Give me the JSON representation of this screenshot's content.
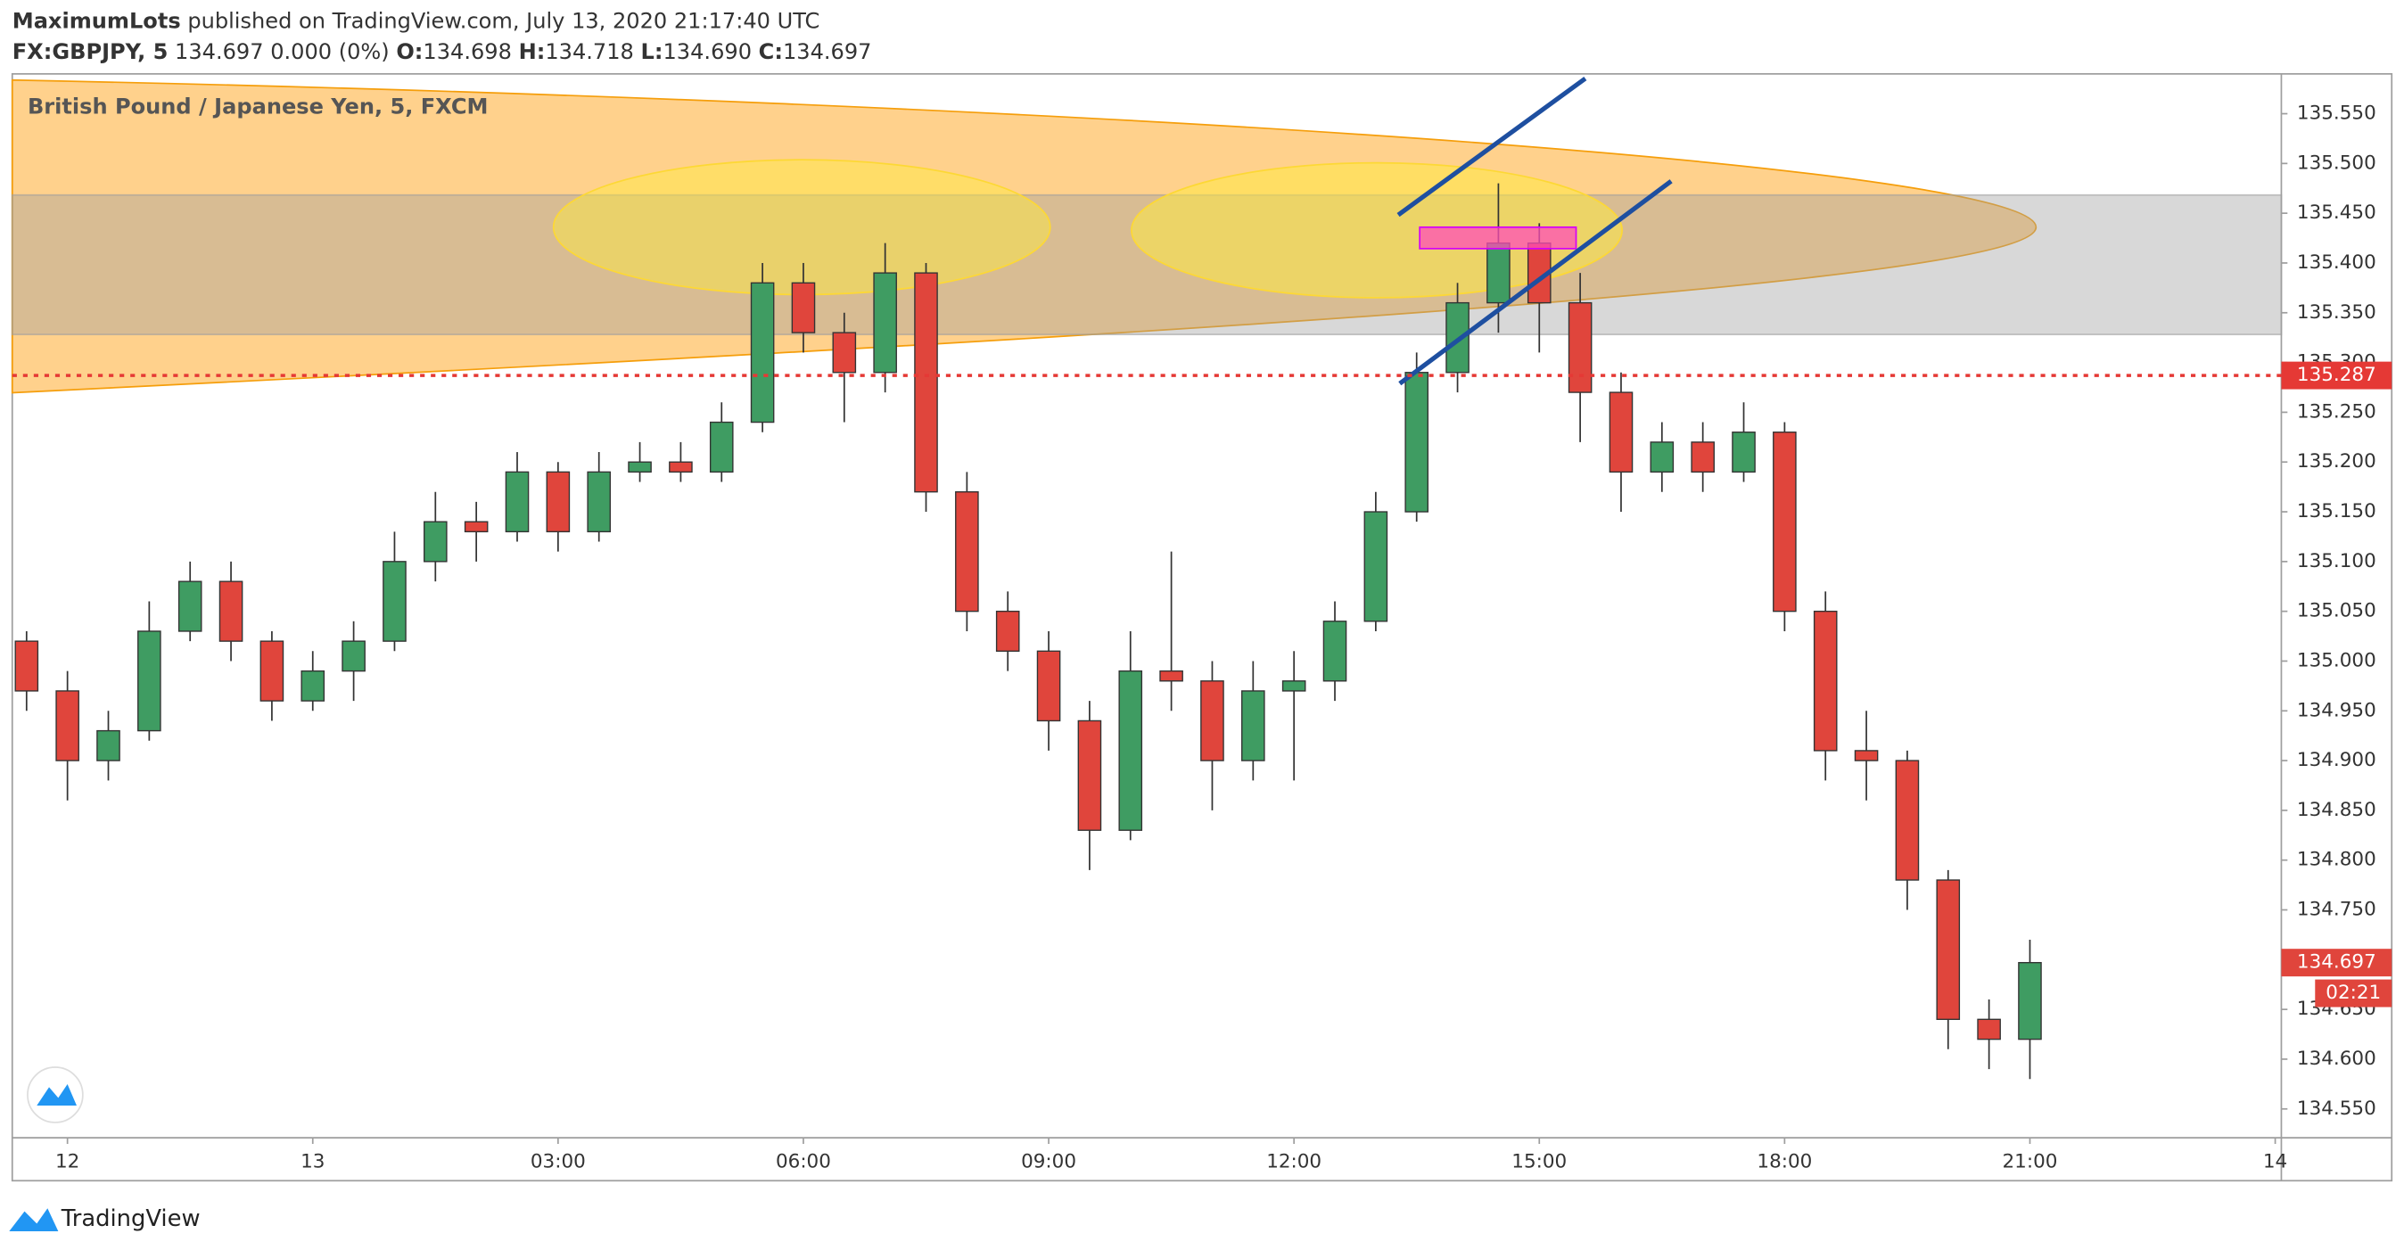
{
  "header": {
    "publisher": "MaximumLots",
    "published": "published on TradingView.com, July 13, 2020 21:17:40 UTC",
    "symbol": "FX:GBPJPY, 5",
    "change": "134.697 0.000 (0%)",
    "ohlc": [
      {
        "label": "O:",
        "value": "134.698"
      },
      {
        "label": "H:",
        "value": "134.718"
      },
      {
        "label": "L:",
        "value": "134.690"
      },
      {
        "label": "C:",
        "value": "134.697"
      }
    ]
  },
  "footer": {
    "brand": "TradingView"
  },
  "chart_data": {
    "type": "candlestick",
    "title": "British Pound / Japanese Yen, 5, FXCM",
    "x": [
      -3.5,
      -3,
      -2.5,
      -2,
      -1.5,
      -1,
      -0.5,
      0,
      0.5,
      1,
      1.5,
      2,
      2.5,
      3,
      3.5,
      4,
      4.5,
      5,
      5.5,
      6,
      6.5,
      7,
      7.5,
      8,
      8.5,
      9,
      9.5,
      10,
      10.5,
      11,
      11.5,
      12,
      12.5,
      13,
      13.5,
      14,
      14.5,
      15,
      15.5,
      16,
      16.5,
      17,
      17.5,
      18,
      18.5,
      19,
      19.5,
      20,
      20.5,
      21
    ],
    "open": [
      135.02,
      134.97,
      134.9,
      134.93,
      135.03,
      135.08,
      135.02,
      134.96,
      134.99,
      135.02,
      135.1,
      135.14,
      135.13,
      135.19,
      135.13,
      135.19,
      135.2,
      135.19,
      135.24,
      135.38,
      135.33,
      135.29,
      135.39,
      135.17,
      135.05,
      135.01,
      134.94,
      134.83,
      134.99,
      134.98,
      134.9,
      134.97,
      134.98,
      135.04,
      135.15,
      135.29,
      135.36,
      135.42,
      135.36,
      135.27,
      135.19,
      135.22,
      135.19,
      135.23,
      135.05,
      134.91,
      134.9,
      134.78,
      134.64,
      134.62
    ],
    "high": [
      135.03,
      134.99,
      134.95,
      135.06,
      135.1,
      135.1,
      135.03,
      135.01,
      135.04,
      135.13,
      135.17,
      135.16,
      135.21,
      135.2,
      135.21,
      135.22,
      135.22,
      135.26,
      135.4,
      135.4,
      135.35,
      135.42,
      135.4,
      135.19,
      135.07,
      135.03,
      134.96,
      135.03,
      135.11,
      135.0,
      135.0,
      135.01,
      135.06,
      135.17,
      135.31,
      135.38,
      135.48,
      135.44,
      135.39,
      135.29,
      135.24,
      135.24,
      135.26,
      135.24,
      135.07,
      134.95,
      134.91,
      134.79,
      134.66,
      134.72
    ],
    "low": [
      134.95,
      134.86,
      134.88,
      134.92,
      135.02,
      135.0,
      134.94,
      134.95,
      134.96,
      135.01,
      135.08,
      135.1,
      135.12,
      135.11,
      135.12,
      135.18,
      135.18,
      135.18,
      135.23,
      135.31,
      135.24,
      135.27,
      135.15,
      135.03,
      134.99,
      134.91,
      134.79,
      134.82,
      134.95,
      134.85,
      134.88,
      134.88,
      134.96,
      135.03,
      135.14,
      135.27,
      135.33,
      135.31,
      135.22,
      135.15,
      135.17,
      135.17,
      135.18,
      135.03,
      134.88,
      134.86,
      134.75,
      134.61,
      134.59,
      134.58
    ],
    "close": [
      134.97,
      134.9,
      134.93,
      135.03,
      135.08,
      135.02,
      134.96,
      134.99,
      135.02,
      135.1,
      135.14,
      135.13,
      135.19,
      135.13,
      135.19,
      135.2,
      135.19,
      135.24,
      135.38,
      135.33,
      135.29,
      135.39,
      135.17,
      135.05,
      135.01,
      134.94,
      134.83,
      134.99,
      134.98,
      134.9,
      134.97,
      134.98,
      135.04,
      135.15,
      135.29,
      135.36,
      135.42,
      135.36,
      135.27,
      135.19,
      135.22,
      135.19,
      135.23,
      135.05,
      134.91,
      134.9,
      134.78,
      134.64,
      134.62,
      134.697
    ],
    "up_color": "#3f9c62",
    "down_color": "#e0453c",
    "xlim": [
      -3.675,
      24.075
    ],
    "xticks": [
      {
        "value": -3,
        "label": "12"
      },
      {
        "value": 0,
        "label": "13"
      },
      {
        "value": 3,
        "label": "03:00"
      },
      {
        "value": 6,
        "label": "06:00"
      },
      {
        "value": 9,
        "label": "09:00"
      },
      {
        "value": 12,
        "label": "12:00"
      },
      {
        "value": 15,
        "label": "15:00"
      },
      {
        "value": 18,
        "label": "18:00"
      },
      {
        "value": 21,
        "label": "21:00"
      },
      {
        "value": 24,
        "label": "14"
      }
    ],
    "ylim": [
      134.521,
      135.59
    ],
    "yticks": [
      {
        "value": 134.55,
        "label": "134.550"
      },
      {
        "value": 134.6,
        "label": "134.600"
      },
      {
        "value": 134.65,
        "label": "134.650"
      },
      {
        "value": 134.7,
        "label": "134.700"
      },
      {
        "value": 134.75,
        "label": "134.750"
      },
      {
        "value": 134.8,
        "label": "134.800"
      },
      {
        "value": 134.85,
        "label": "134.850"
      },
      {
        "value": 134.9,
        "label": "134.900"
      },
      {
        "value": 134.95,
        "label": "134.950"
      },
      {
        "value": 135,
        "label": "135.000"
      },
      {
        "value": 135.05,
        "label": "135.050"
      },
      {
        "value": 135.1,
        "label": "135.100"
      },
      {
        "value": 135.15,
        "label": "135.150"
      },
      {
        "value": 135.2,
        "label": "135.200"
      },
      {
        "value": 135.25,
        "label": "135.250"
      },
      {
        "value": 135.3,
        "label": "135.300"
      },
      {
        "value": 135.35,
        "label": "135.350"
      },
      {
        "value": 135.4,
        "label": "135.400"
      },
      {
        "value": 135.45,
        "label": "135.450"
      },
      {
        "value": 135.5,
        "label": "135.500"
      },
      {
        "value": 135.55,
        "label": "135.550"
      }
    ],
    "grid": false,
    "price_line": 135.287,
    "price_line_color": "#e53935",
    "last_price": 134.697,
    "countdown": "02:21"
  }
}
